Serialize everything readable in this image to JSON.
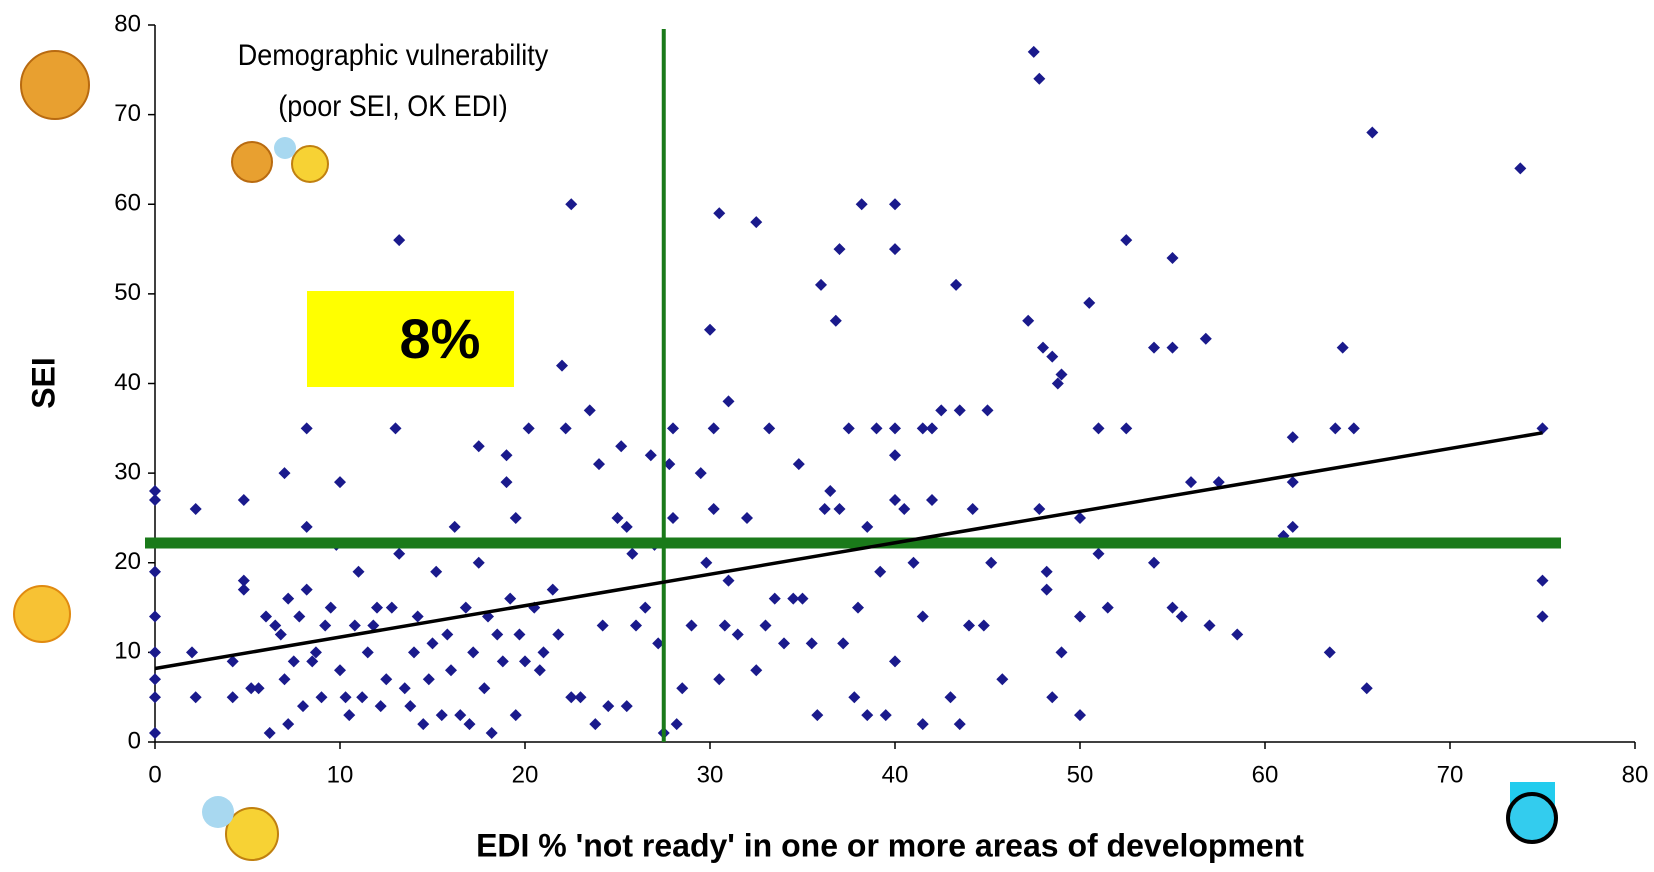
{
  "chart_data": {
    "type": "scatter",
    "color": "#1a1a8c",
    "x_label": "EDI % 'not ready' in one or more areas of development",
    "y_label": "SEI",
    "annotations": [
      "Demographic vulnerability",
      "(poor SEI, OK EDI)"
    ],
    "highlight": "8%",
    "xlim": [
      0,
      80
    ],
    "xticks": [
      0,
      10,
      20,
      30,
      40,
      50,
      60,
      70,
      80
    ],
    "ylim": [
      0,
      80
    ],
    "yticks": [
      0,
      10,
      20,
      30,
      40,
      50,
      60,
      70,
      80
    ],
    "reference_lines": {
      "x": 27.5,
      "y": 22.2,
      "color": "#1a7a1a"
    },
    "trendline": {
      "x": [
        0,
        75
      ],
      "values": [
        8.2,
        34.5
      ],
      "color": "#000000"
    },
    "x": [
      0,
      0,
      0,
      0,
      0,
      0,
      0,
      0,
      2,
      2.2,
      2.2,
      4.2,
      4.2,
      4.8,
      4.8,
      4.8,
      5.2,
      5.6,
      6,
      6.2,
      6.5,
      6.8,
      7,
      7,
      7.2,
      7.2,
      7.5,
      7.8,
      8,
      8.2,
      8.2,
      8.2,
      8.5,
      8.7,
      9,
      9.2,
      9.5,
      9.8,
      10,
      10,
      10.3,
      10.5,
      10.8,
      11,
      11.2,
      11.5,
      11.8,
      12,
      12.2,
      12.5,
      12.8,
      13,
      13.2,
      13.2,
      13.5,
      13.8,
      14,
      14.2,
      14.5,
      14.8,
      15,
      15.2,
      15.5,
      15.8,
      16,
      16.2,
      16.5,
      16.8,
      17,
      17.2,
      17.5,
      17.5,
      17.8,
      18,
      18.2,
      18.5,
      18.8,
      19,
      19,
      19.2,
      19.5,
      19.5,
      19.7,
      20,
      20.2,
      20.5,
      20.8,
      21,
      21.5,
      21.8,
      22,
      22.2,
      22.5,
      22.5,
      23,
      23.5,
      23.8,
      24,
      24.2,
      24.5,
      25,
      25.2,
      25.5,
      25.5,
      25.8,
      26,
      26.5,
      26.8,
      27,
      27.2,
      27.5,
      27.8,
      28,
      28,
      28.2,
      28.5,
      29,
      29.5,
      29.8,
      30,
      30.2,
      30.2,
      30.5,
      30.5,
      30.8,
      31,
      31,
      31.5,
      32,
      32.5,
      32.5,
      33,
      33.2,
      33.5,
      34,
      34.5,
      34.8,
      35,
      35.5,
      35.8,
      36,
      36.2,
      36.5,
      36.8,
      37,
      37,
      37.2,
      37.5,
      37.8,
      38,
      38.2,
      38.5,
      38.5,
      39,
      39.2,
      39.5,
      40,
      40,
      40,
      40,
      40,
      40,
      40.5,
      41,
      41.5,
      41.5,
      41.5,
      42,
      42,
      42.5,
      43,
      43.3,
      43.5,
      43.5,
      44,
      44.2,
      44.8,
      45,
      45.2,
      45.8,
      47.2,
      47.5,
      47.8,
      47.8,
      48,
      48.2,
      48.2,
      48.5,
      48.5,
      48.8,
      49,
      49,
      50,
      50,
      50,
      50.5,
      51,
      51,
      51.5,
      52.5,
      52.5,
      54,
      54,
      55,
      55,
      55,
      55.5,
      56,
      56.8,
      57,
      57.5,
      58.5,
      61,
      61.5,
      61.5,
      61.5,
      63.5,
      63.8,
      64.2,
      64.8,
      65.5,
      65.8,
      73.8,
      75,
      75,
      75
    ],
    "values": [
      28,
      27,
      19,
      14,
      10,
      7,
      5,
      1,
      10,
      26,
      5,
      5,
      9,
      27,
      18,
      17,
      6,
      6,
      14,
      1,
      13,
      12,
      30,
      7,
      16,
      2,
      9,
      14,
      4,
      35,
      24,
      17,
      9,
      10,
      5,
      13,
      15,
      22,
      29,
      8,
      5,
      3,
      13,
      19,
      5,
      10,
      13,
      15,
      4,
      7,
      15,
      35,
      56,
      21,
      6,
      4,
      10,
      14,
      2,
      7,
      11,
      19,
      3,
      12,
      8,
      24,
      3,
      15,
      2,
      10,
      33,
      20,
      6,
      14,
      1,
      12,
      9,
      29,
      32,
      16,
      25,
      3,
      12,
      9,
      35,
      15,
      8,
      10,
      17,
      12,
      42,
      35,
      60,
      5,
      5,
      37,
      2,
      31,
      13,
      4,
      25,
      33,
      24,
      4,
      21,
      13,
      15,
      32,
      22,
      11,
      1,
      31,
      35,
      25,
      2,
      6,
      13,
      30,
      20,
      46,
      35,
      26,
      59,
      7,
      13,
      38,
      18,
      12,
      25,
      8,
      58,
      13,
      35,
      16,
      11,
      16,
      31,
      16,
      11,
      3,
      51,
      26,
      28,
      47,
      55,
      26,
      11,
      35,
      5,
      15,
      60,
      24,
      3,
      35,
      19,
      3,
      60,
      55,
      35,
      32,
      27,
      9,
      26,
      20,
      35,
      14,
      2,
      27,
      35,
      37,
      5,
      51,
      2,
      37,
      13,
      26,
      13,
      37,
      20,
      7,
      47,
      77,
      74,
      26,
      44,
      19,
      17,
      43,
      5,
      40,
      41,
      10,
      25,
      14,
      3,
      49,
      35,
      21,
      15,
      56,
      35,
      44,
      20,
      54,
      44,
      15,
      14,
      29,
      45,
      13,
      29,
      12,
      23,
      29,
      34,
      24,
      10,
      35,
      44,
      35,
      6,
      68,
      64,
      35,
      18,
      14
    ]
  }
}
